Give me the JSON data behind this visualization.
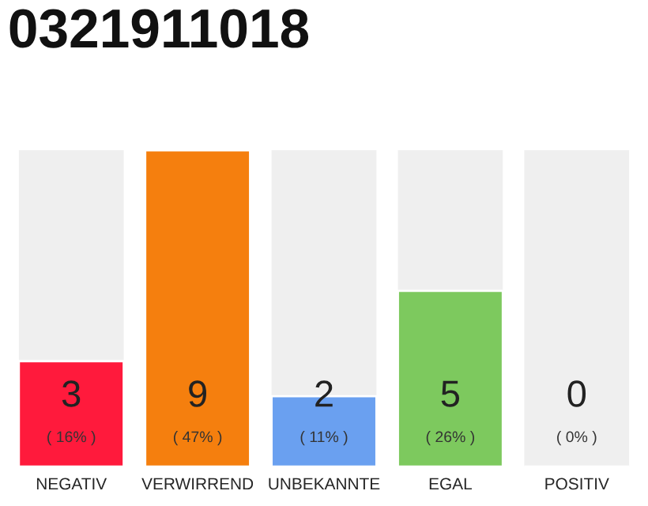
{
  "chart_data": {
    "type": "bar",
    "title": "0321911018",
    "categories": [
      "NEGATIV",
      "VERWIRREND",
      "UNBEKANNTE",
      "EGAL",
      "POSITIV"
    ],
    "values": [
      3,
      9,
      2,
      5,
      0
    ],
    "colors": [
      "#ff1a3c",
      "#f57f0e",
      "#6aa0f0",
      "#7dc95e",
      null
    ],
    "value_labels": [
      "3\n( 16% )",
      "9\n( 47% )",
      "2\n( 11% )",
      "5\n( 26% )",
      "0\n( 0% )"
    ],
    "ylim": [
      0,
      9
    ],
    "tick_labels": "x",
    "grid": false,
    "legend": false
  }
}
